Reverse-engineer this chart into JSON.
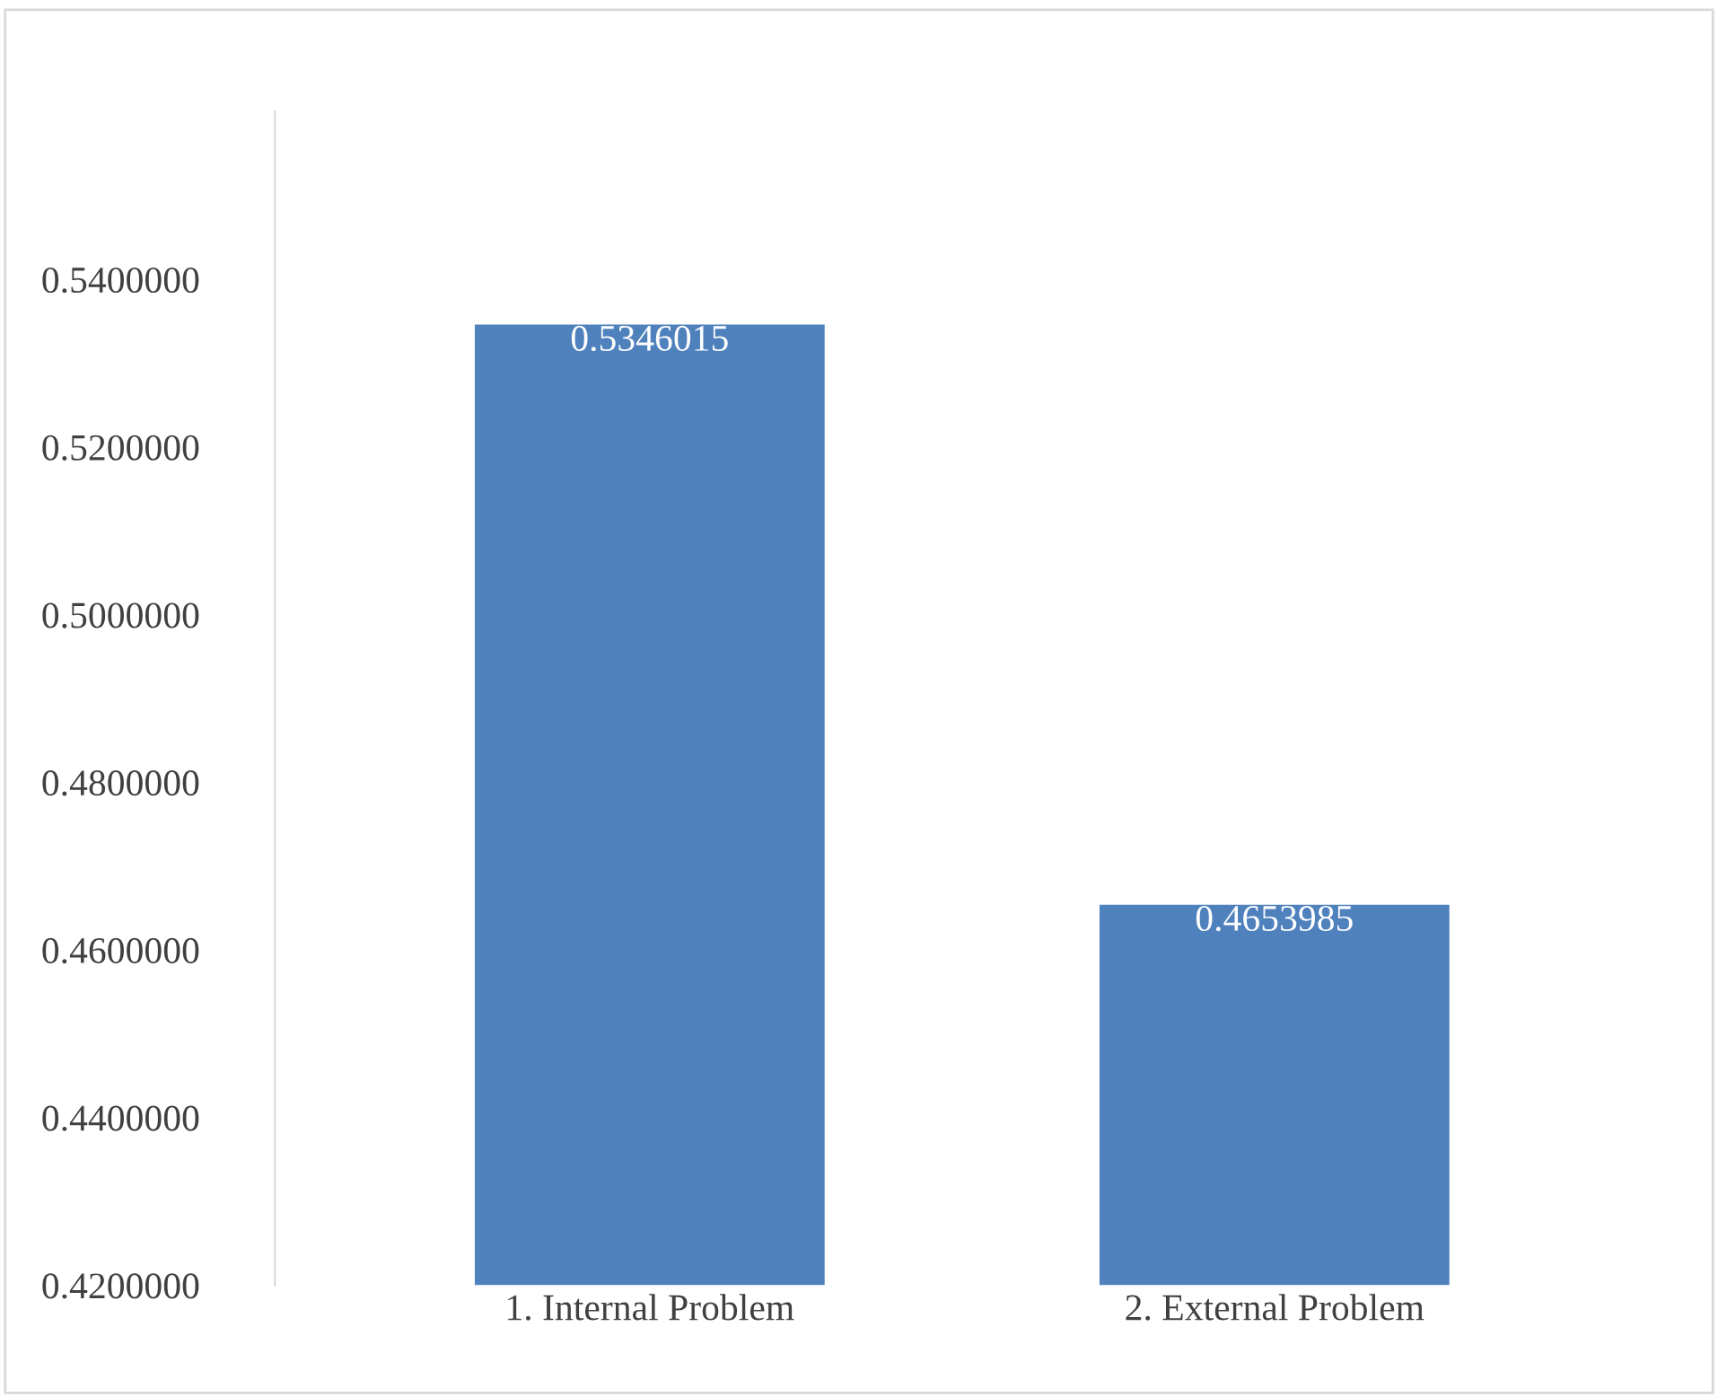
{
  "chart_data": {
    "type": "bar",
    "categories": [
      "1. Internal Problem",
      "2. External Problem"
    ],
    "values": [
      0.5346015,
      0.4653985
    ],
    "color": "#4f81bd",
    "data_labels": true,
    "ylim": [
      0.42,
      0.56
    ],
    "yticks": [
      {
        "value": 0.42,
        "label": "0.4200000"
      },
      {
        "value": 0.44,
        "label": "0.4400000"
      },
      {
        "value": 0.46,
        "label": "0.4600000"
      },
      {
        "value": 0.48,
        "label": "0.4800000"
      },
      {
        "value": 0.5,
        "label": "0.5000000"
      },
      {
        "value": 0.52,
        "label": "0.5200000"
      },
      {
        "value": 0.54,
        "label": "0.5400000"
      }
    ],
    "grid": false,
    "legend": false
  }
}
